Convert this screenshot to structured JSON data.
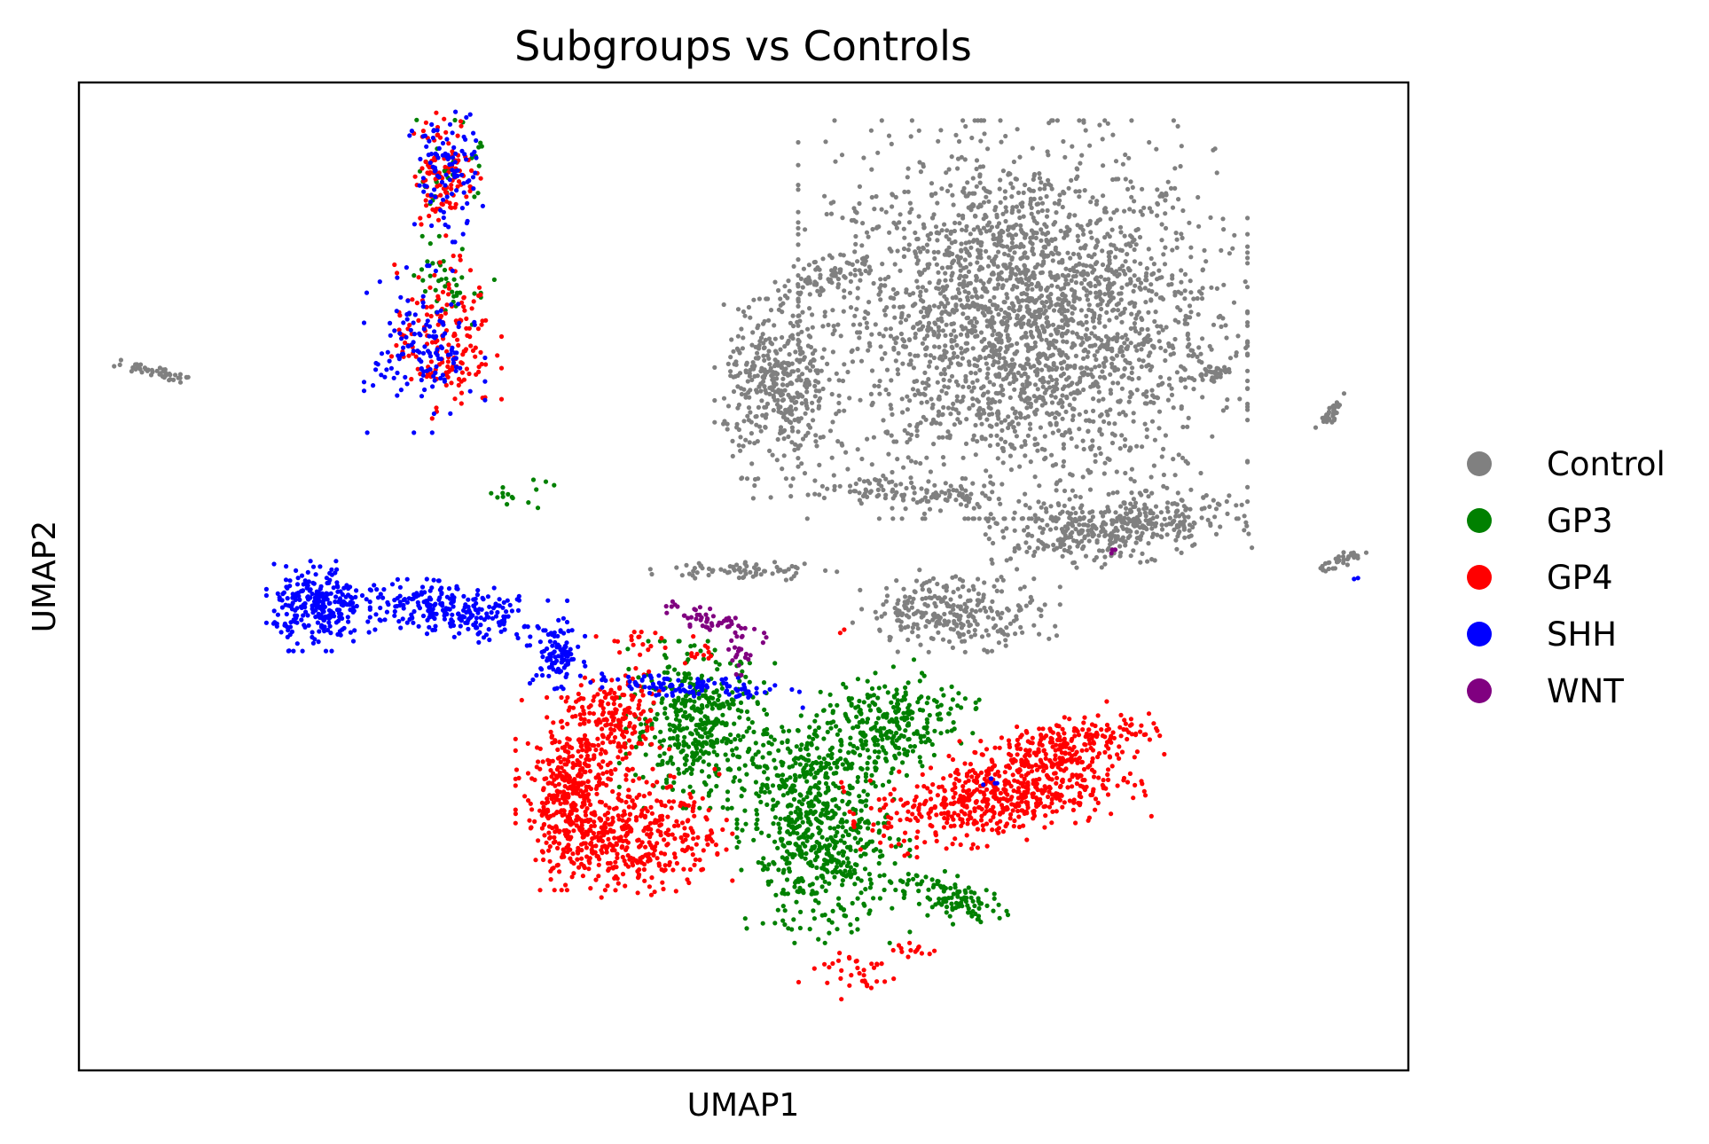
{
  "chart_data": {
    "type": "scatter",
    "title": "Subgroups vs Controls",
    "xlabel": "UMAP1",
    "ylabel": "UMAP2",
    "xlim": [
      0,
      100
    ],
    "ylim": [
      0,
      100
    ],
    "xticks": [],
    "yticks": [],
    "grid": false,
    "legend_position": "right",
    "series": [
      {
        "name": "Control",
        "color": "#808080",
        "clusters": [
          {
            "cx": 71.0,
            "cy": 76.0,
            "rx": 13.0,
            "ry": 15.5,
            "n": 2600,
            "rot": 0
          },
          {
            "cx": 52.5,
            "cy": 69.0,
            "rx": 3.6,
            "ry": 7.0,
            "n": 380,
            "rot": 0
          },
          {
            "cx": 56.0,
            "cy": 80.5,
            "rx": 5.5,
            "ry": 1.4,
            "n": 90,
            "rot": 28
          },
          {
            "cx": 62.5,
            "cy": 58.5,
            "rx": 9.0,
            "ry": 1.3,
            "n": 120,
            "rot": -4
          },
          {
            "cx": 78.0,
            "cy": 54.8,
            "rx": 7.5,
            "ry": 2.8,
            "n": 420,
            "rot": 10
          },
          {
            "cx": 66.0,
            "cy": 46.5,
            "rx": 6.0,
            "ry": 3.2,
            "n": 280,
            "rot": 0
          },
          {
            "cx": 50.0,
            "cy": 50.6,
            "rx": 5.4,
            "ry": 0.8,
            "n": 70,
            "rot": 0
          },
          {
            "cx": 5.6,
            "cy": 70.8,
            "rx": 2.6,
            "ry": 0.5,
            "n": 45,
            "rot": -15
          },
          {
            "cx": 85.2,
            "cy": 70.5,
            "rx": 1.1,
            "ry": 0.9,
            "n": 30,
            "rot": 0
          },
          {
            "cx": 94.2,
            "cy": 66.5,
            "rx": 1.7,
            "ry": 0.5,
            "n": 35,
            "rot": 55
          },
          {
            "cx": 94.7,
            "cy": 51.5,
            "rx": 2.1,
            "ry": 0.5,
            "n": 35,
            "rot": 30
          }
        ]
      },
      {
        "name": "GP3",
        "color": "#008000",
        "clusters": [
          {
            "cx": 46.5,
            "cy": 35.0,
            "rx": 4.5,
            "ry": 6.5,
            "n": 420,
            "rot": 0
          },
          {
            "cx": 56.0,
            "cy": 22.0,
            "rx": 5.0,
            "ry": 7.0,
            "n": 460,
            "rot": 0
          },
          {
            "cx": 61.0,
            "cy": 35.0,
            "rx": 5.5,
            "ry": 4.0,
            "n": 300,
            "rot": 25
          },
          {
            "cx": 54.0,
            "cy": 30.0,
            "rx": 4.0,
            "ry": 5.0,
            "n": 220,
            "rot": 0
          },
          {
            "cx": 65.5,
            "cy": 17.5,
            "rx": 4.0,
            "ry": 1.8,
            "n": 110,
            "rot": -25
          },
          {
            "cx": 28.0,
            "cy": 79.5,
            "rx": 2.5,
            "ry": 3.8,
            "n": 40,
            "rot": 0
          },
          {
            "cx": 28.0,
            "cy": 91.0,
            "rx": 2.0,
            "ry": 4.0,
            "n": 30,
            "rot": 0
          },
          {
            "cx": 32.5,
            "cy": 58.5,
            "rx": 2.5,
            "ry": 1.2,
            "n": 15,
            "rot": 0
          }
        ]
      },
      {
        "name": "GP4",
        "color": "#ff0000",
        "clusters": [
          {
            "cx": 37.0,
            "cy": 28.0,
            "rx": 3.2,
            "ry": 7.5,
            "n": 420,
            "rot": 0
          },
          {
            "cx": 42.0,
            "cy": 24.0,
            "rx": 5.5,
            "ry": 5.0,
            "n": 380,
            "rot": 0
          },
          {
            "cx": 40.5,
            "cy": 35.5,
            "rx": 3.0,
            "ry": 4.0,
            "n": 160,
            "rot": 0
          },
          {
            "cx": 69.0,
            "cy": 27.5,
            "rx": 8.5,
            "ry": 3.5,
            "n": 520,
            "rot": 12
          },
          {
            "cx": 73.5,
            "cy": 32.5,
            "rx": 6.0,
            "ry": 2.5,
            "n": 260,
            "rot": 20
          },
          {
            "cx": 58.0,
            "cy": 10.0,
            "rx": 3.5,
            "ry": 2.2,
            "n": 35,
            "rot": 0
          },
          {
            "cx": 63.0,
            "cy": 12.2,
            "rx": 1.4,
            "ry": 0.6,
            "n": 14,
            "rot": 0
          },
          {
            "cx": 27.5,
            "cy": 74.0,
            "rx": 3.3,
            "ry": 6.5,
            "n": 170,
            "rot": 0
          },
          {
            "cx": 27.5,
            "cy": 91.0,
            "rx": 2.1,
            "ry": 5.0,
            "n": 110,
            "rot": 0
          },
          {
            "cx": 41.5,
            "cy": 43.5,
            "rx": 2.0,
            "ry": 1.1,
            "n": 18,
            "rot": 0
          },
          {
            "cx": 46.5,
            "cy": 42.5,
            "rx": 1.2,
            "ry": 1.1,
            "n": 12,
            "rot": 0
          },
          {
            "cx": 57.5,
            "cy": 44.5,
            "rx": 0.3,
            "ry": 0.3,
            "n": 2,
            "rot": 0
          }
        ]
      },
      {
        "name": "SHH",
        "color": "#0000ff",
        "clusters": [
          {
            "cx": 18.0,
            "cy": 47.0,
            "rx": 3.0,
            "ry": 3.5,
            "n": 260,
            "rot": 0
          },
          {
            "cx": 28.0,
            "cy": 46.5,
            "rx": 6.5,
            "ry": 2.2,
            "n": 260,
            "rot": -10
          },
          {
            "cx": 36.0,
            "cy": 42.0,
            "rx": 1.6,
            "ry": 2.6,
            "n": 90,
            "rot": 0
          },
          {
            "cx": 45.5,
            "cy": 38.8,
            "rx": 7.0,
            "ry": 1.0,
            "n": 110,
            "rot": -5
          },
          {
            "cx": 26.0,
            "cy": 73.0,
            "rx": 3.5,
            "ry": 6.5,
            "n": 140,
            "rot": 0
          },
          {
            "cx": 27.6,
            "cy": 91.0,
            "rx": 2.2,
            "ry": 5.5,
            "n": 100,
            "rot": 0
          },
          {
            "cx": 68.5,
            "cy": 29.0,
            "rx": 0.8,
            "ry": 0.6,
            "n": 4,
            "rot": 0
          },
          {
            "cx": 95.8,
            "cy": 50.0,
            "rx": 0.4,
            "ry": 0.4,
            "n": 2,
            "rot": 0
          }
        ]
      },
      {
        "name": "WNT",
        "color": "#800080",
        "clusters": [
          {
            "cx": 47.8,
            "cy": 45.3,
            "rx": 3.2,
            "ry": 0.9,
            "n": 55,
            "rot": -24
          },
          {
            "cx": 49.6,
            "cy": 42.0,
            "rx": 0.8,
            "ry": 1.6,
            "n": 18,
            "rot": 0
          },
          {
            "cx": 77.9,
            "cy": 52.5,
            "rx": 0.4,
            "ry": 0.4,
            "n": 3,
            "rot": 0
          }
        ]
      }
    ]
  }
}
